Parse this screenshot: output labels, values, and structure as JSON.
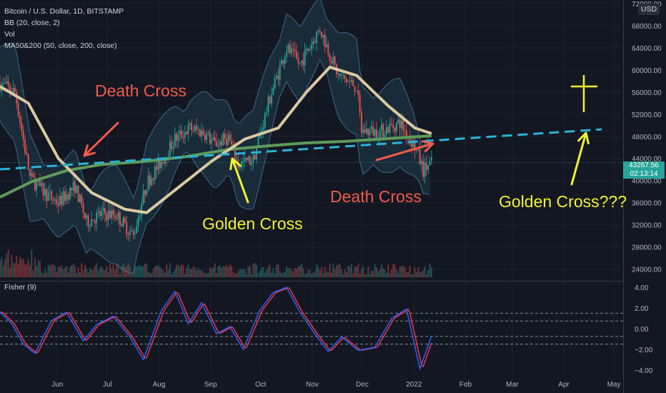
{
  "legend": {
    "symbol": "Bitcoin / U.S. Dollar, 1D, BITSTAMP",
    "bb": "BB (20, close, 2)",
    "vol": "Vol",
    "ma": "MA50&200 (50, close, 200, close)"
  },
  "sub_legend": "Fisher (9)",
  "currency_badge": "USD",
  "last_price": {
    "value": "43267.56",
    "countdown": "02:13:14",
    "color": "#26a69a"
  },
  "annotations": {
    "death_cross_1": "Death Cross",
    "golden_cross": "Golden Cross",
    "death_cross_2": "Death Cross",
    "golden_cross_future": "Golden Cross???"
  },
  "colors": {
    "background": "#131722",
    "annotation_red": "#f05a4a",
    "annotation_yellow": "#f2f230",
    "ma50": "#d8c9a0",
    "ma200": "#5e9a5a",
    "trendline": "#2ab3d6",
    "fisher_blue": "#2962ff",
    "fisher_red": "#f23645",
    "bb_fill": "#1f3a4a",
    "up_candle": "#26a69a",
    "down_candle": "#ef5350"
  },
  "chart_data": [
    {
      "type": "line",
      "title": "Bitcoin / U.S. Dollar, 1D, BITSTAMP",
      "ylim": [
        22000,
        72000
      ],
      "yticks": [
        24000,
        28000,
        32000,
        36000,
        40000,
        44000,
        48000,
        52000,
        56000,
        60000,
        64000,
        68000,
        72000
      ],
      "ytick_labels": [
        "24000.00",
        "28000.00",
        "32000.00",
        "36000.00",
        "40000.00",
        "44000.00",
        "48000.00",
        "52000.00",
        "56000.00",
        "60000.00",
        "64000.00",
        "68000.00",
        "72000.00"
      ],
      "xtick_labels": [
        "Jun",
        "Jul",
        "Aug",
        "Sep",
        "Oct",
        "Nov",
        "Dec",
        "2022",
        "Feb",
        "Mar",
        "Apr",
        "May"
      ],
      "x_range": [
        "2021-05-01",
        "2022-05-10"
      ],
      "grid": true,
      "series": [
        {
          "name": "close",
          "dates": [
            "2021-05-01",
            "2021-05-10",
            "2021-05-19",
            "2021-05-27",
            "2021-06-05",
            "2021-06-15",
            "2021-06-22",
            "2021-07-01",
            "2021-07-10",
            "2021-07-20",
            "2021-07-28",
            "2021-08-07",
            "2021-08-14",
            "2021-08-23",
            "2021-09-01",
            "2021-09-07",
            "2021-09-15",
            "2021-09-21",
            "2021-09-30",
            "2021-10-10",
            "2021-10-20",
            "2021-10-28",
            "2021-11-09",
            "2021-11-20",
            "2021-12-01",
            "2021-12-04",
            "2021-12-15",
            "2021-12-27",
            "2022-01-05",
            "2022-01-10",
            "2022-01-15"
          ],
          "values": [
            57500,
            56000,
            40500,
            38000,
            36000,
            39000,
            32500,
            34000,
            33800,
            30000,
            39500,
            44000,
            47500,
            49500,
            48500,
            46500,
            47800,
            42800,
            43800,
            55000,
            64000,
            61000,
            67500,
            59000,
            57000,
            49000,
            48800,
            50500,
            46200,
            41800,
            43267
          ]
        },
        {
          "name": "MA50",
          "dates": [
            "2021-05-01",
            "2021-05-18",
            "2021-06-05",
            "2021-06-25",
            "2021-07-15",
            "2021-07-28",
            "2021-08-15",
            "2021-09-05",
            "2021-09-25",
            "2021-10-15",
            "2021-11-01",
            "2021-11-15",
            "2021-12-01",
            "2021-12-20",
            "2022-01-05",
            "2022-01-15"
          ],
          "values": [
            57000,
            54000,
            44000,
            37800,
            34800,
            34200,
            38500,
            43500,
            47500,
            49500,
            56000,
            60500,
            59000,
            53500,
            49500,
            48500
          ]
        },
        {
          "name": "MA200",
          "dates": [
            "2021-05-01",
            "2021-05-20",
            "2021-06-10",
            "2021-07-01",
            "2021-07-25",
            "2021-08-20",
            "2021-09-15",
            "2021-10-10",
            "2021-11-01",
            "2021-11-25",
            "2021-12-20",
            "2022-01-15"
          ],
          "values": [
            37000,
            39800,
            41800,
            42900,
            43400,
            44300,
            45600,
            46300,
            46800,
            47100,
            47600,
            48100
          ]
        }
      ]
    },
    {
      "type": "line",
      "title": "Fisher (9)",
      "ylim": [
        -4.5,
        4.5
      ],
      "yticks": [
        -4,
        -2,
        0,
        2,
        4
      ],
      "ytick_labels": [
        "−4.00",
        "−2.00",
        "0.00",
        "2.00",
        "4.00"
      ],
      "guide_levels": [
        -1.5,
        -0.75,
        0.75,
        1.5
      ],
      "series": [
        {
          "name": "Fisher",
          "dates": [
            "2021-05-01",
            "2021-05-08",
            "2021-05-15",
            "2021-05-22",
            "2021-06-01",
            "2021-06-10",
            "2021-06-20",
            "2021-06-28",
            "2021-07-08",
            "2021-07-18",
            "2021-07-26",
            "2021-08-06",
            "2021-08-14",
            "2021-08-22",
            "2021-08-30",
            "2021-09-08",
            "2021-09-16",
            "2021-09-24",
            "2021-10-04",
            "2021-10-12",
            "2021-10-20",
            "2021-10-28",
            "2021-11-06",
            "2021-11-14",
            "2021-11-22",
            "2021-12-02",
            "2021-12-12",
            "2021-12-22",
            "2021-12-31",
            "2022-01-08",
            "2022-01-15"
          ],
          "values": [
            1.6,
            0.5,
            -1.5,
            -2.4,
            0.8,
            1.6,
            -1.2,
            0.4,
            1.2,
            -0.8,
            -3.0,
            1.8,
            3.6,
            0.5,
            2.5,
            -0.5,
            0.2,
            -2.0,
            1.8,
            3.5,
            4.0,
            1.6,
            -0.5,
            -2.2,
            -0.8,
            -2.1,
            -1.8,
            1.0,
            1.9,
            -3.9,
            -0.7
          ]
        }
      ]
    }
  ]
}
